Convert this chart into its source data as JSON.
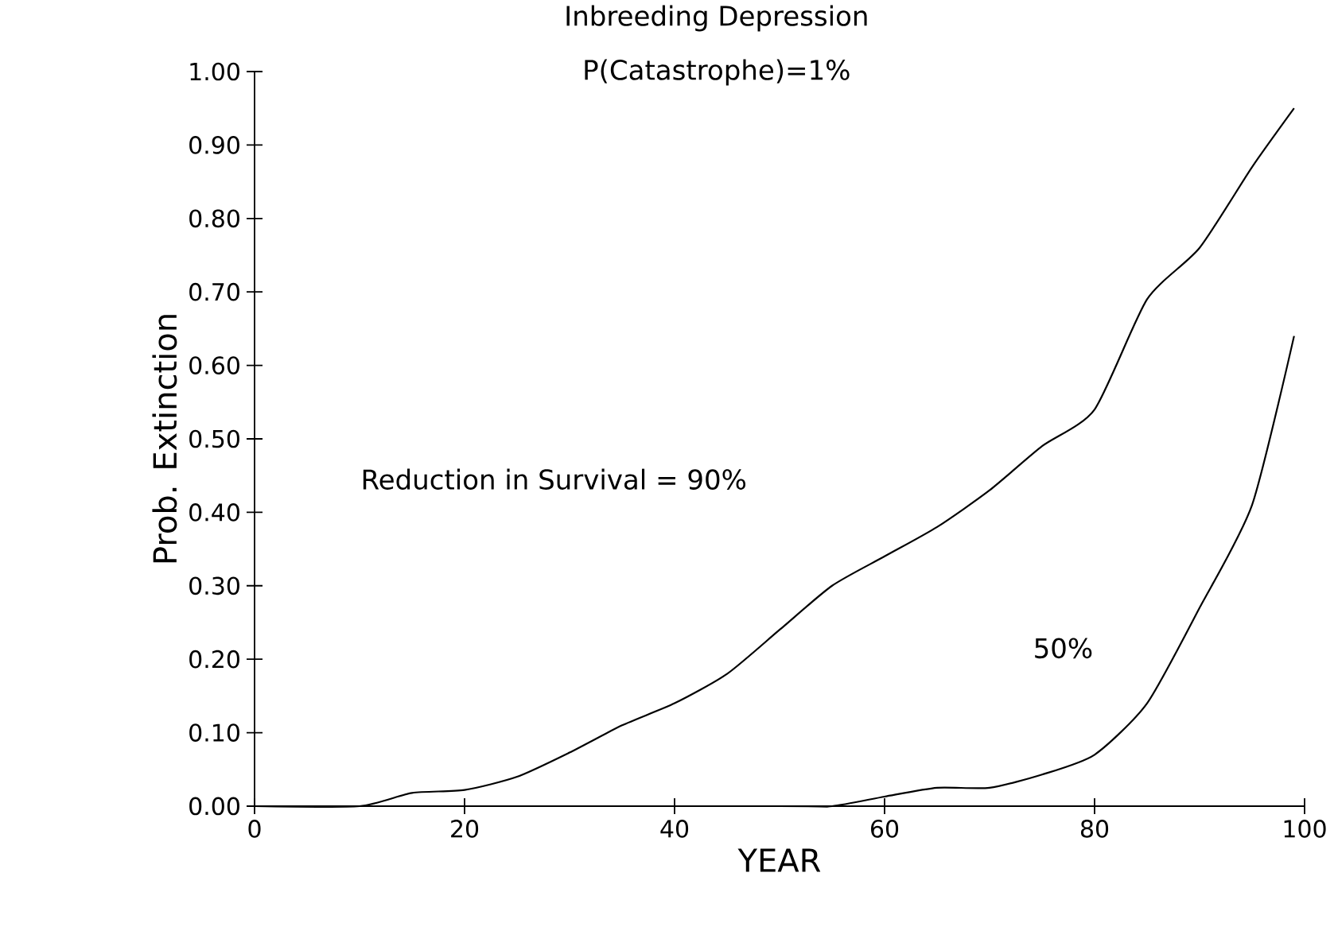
{
  "chart_data": {
    "type": "line",
    "title": "Inbreeding Depression",
    "subtitle": "P(Catastrophe)=1%",
    "xlabel": "YEAR",
    "ylabel": "Prob. Extinction",
    "series": [
      {
        "color": "#000000",
        "x": [
          0,
          10,
          15,
          20,
          25,
          30,
          35,
          40,
          45,
          50,
          55,
          60,
          65,
          70,
          75,
          80,
          85,
          90,
          95,
          99
        ],
        "values": [
          0,
          0,
          0.018,
          0.022,
          0.04,
          0.073,
          0.11,
          0.14,
          0.18,
          0.24,
          0.3,
          0.34,
          0.38,
          0.43,
          0.49,
          0.54,
          0.69,
          0.76,
          0.87,
          0.95
        ]
      },
      {
        "color": "#000000",
        "x": [
          0,
          50,
          55,
          60,
          65,
          70,
          75,
          80,
          85,
          90,
          95,
          99
        ],
        "values": [
          0,
          0,
          0,
          0.013,
          0.025,
          0.025,
          0.043,
          0.07,
          0.14,
          0.27,
          0.41,
          0.64
        ]
      }
    ],
    "annotations": [
      "Reduction in Survival = 90%",
      "50%"
    ],
    "xlim": [
      0,
      100
    ],
    "ylim": [
      0,
      1
    ],
    "xticks": [
      0,
      20,
      40,
      60,
      80,
      100
    ],
    "yticks": [
      {
        "value": 0,
        "label": "0.00"
      },
      {
        "value": 0.1,
        "label": "0.10"
      },
      {
        "value": 0.2,
        "label": "0.20"
      },
      {
        "value": 0.3,
        "label": "0.30"
      },
      {
        "value": 0.4,
        "label": "0.40"
      },
      {
        "value": 0.5,
        "label": "0.50"
      },
      {
        "value": 0.6,
        "label": "0.60"
      },
      {
        "value": 0.7,
        "label": "0.70"
      },
      {
        "value": 0.8,
        "label": "0.80"
      },
      {
        "value": 0.9,
        "label": "0.90"
      },
      {
        "value": 1,
        "label": "1.00"
      }
    ],
    "grid": false,
    "legend": false,
    "marker": "none",
    "line_style": "solid"
  }
}
